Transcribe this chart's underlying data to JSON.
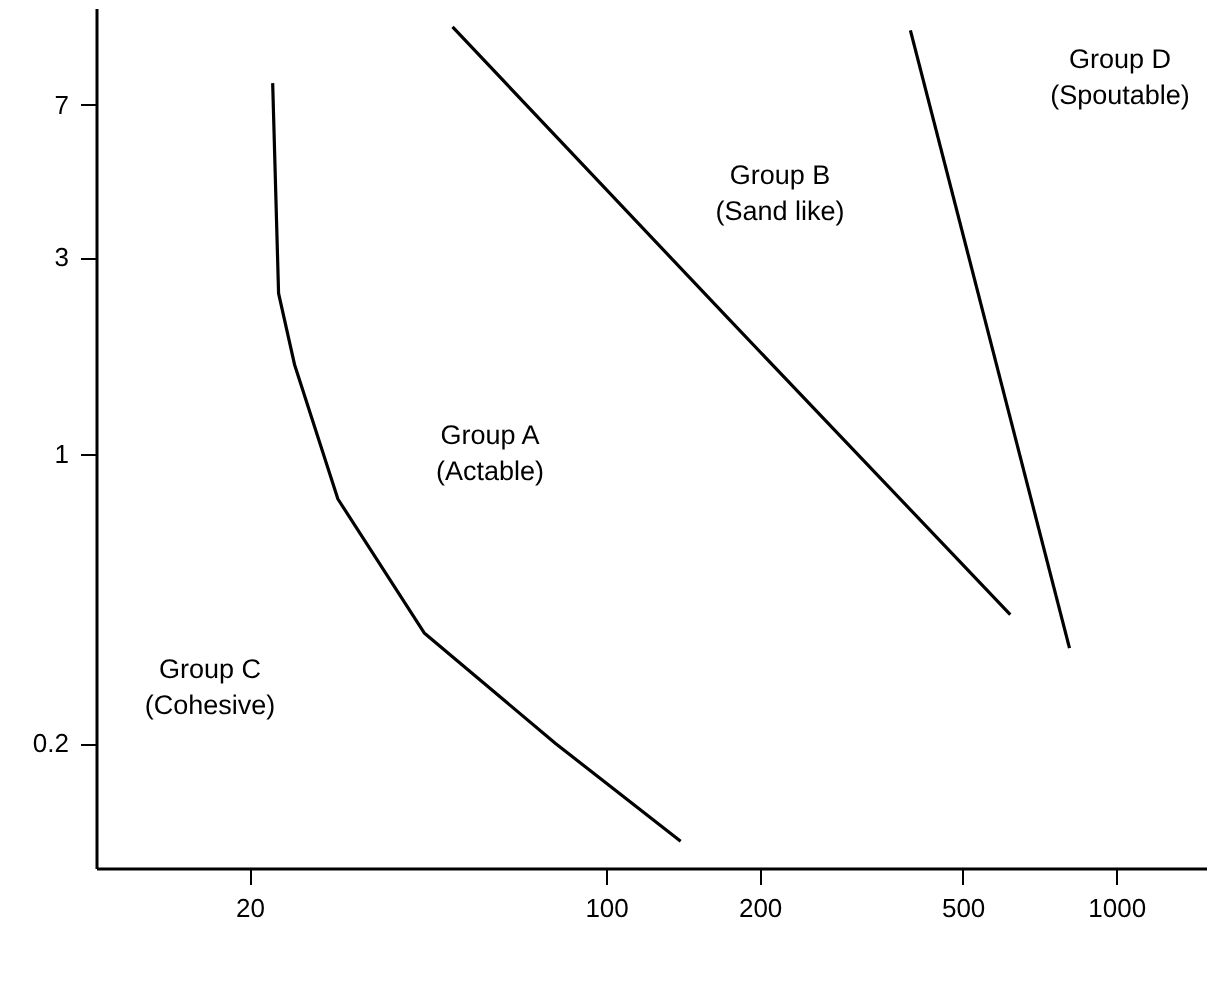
{
  "chart_data": {
    "type": "line",
    "log": "xy",
    "xlim": [
      10,
      1500
    ],
    "ylim": [
      0.1,
      12
    ],
    "xticks": [
      20,
      100,
      200,
      500,
      1000
    ],
    "yticks": [
      0.2,
      1,
      3,
      7
    ],
    "grid": false,
    "marker": "none",
    "line_style": "solid",
    "series": [
      {
        "color": "#000000",
        "x": [
          22.2,
          22.8,
          24.5,
          29.8,
          44,
          79.6,
          140
        ],
        "values": [
          7.9,
          2.45,
          1.65,
          0.78,
          0.37,
          0.2,
          0.116
        ]
      },
      {
        "color": "#000000",
        "x": [
          50,
          173,
          620
        ],
        "values": [
          10.8,
          2.14,
          0.41
        ]
      },
      {
        "color": "#000000",
        "x": [
          395,
          810
        ],
        "values": [
          10.6,
          0.34
        ]
      }
    ],
    "annotations": [
      "Group A\n(Actable)",
      "Group B\n(Sand like)",
      "Group C\n(Cohesive)",
      "Group D\n(Spoutable)"
    ]
  }
}
